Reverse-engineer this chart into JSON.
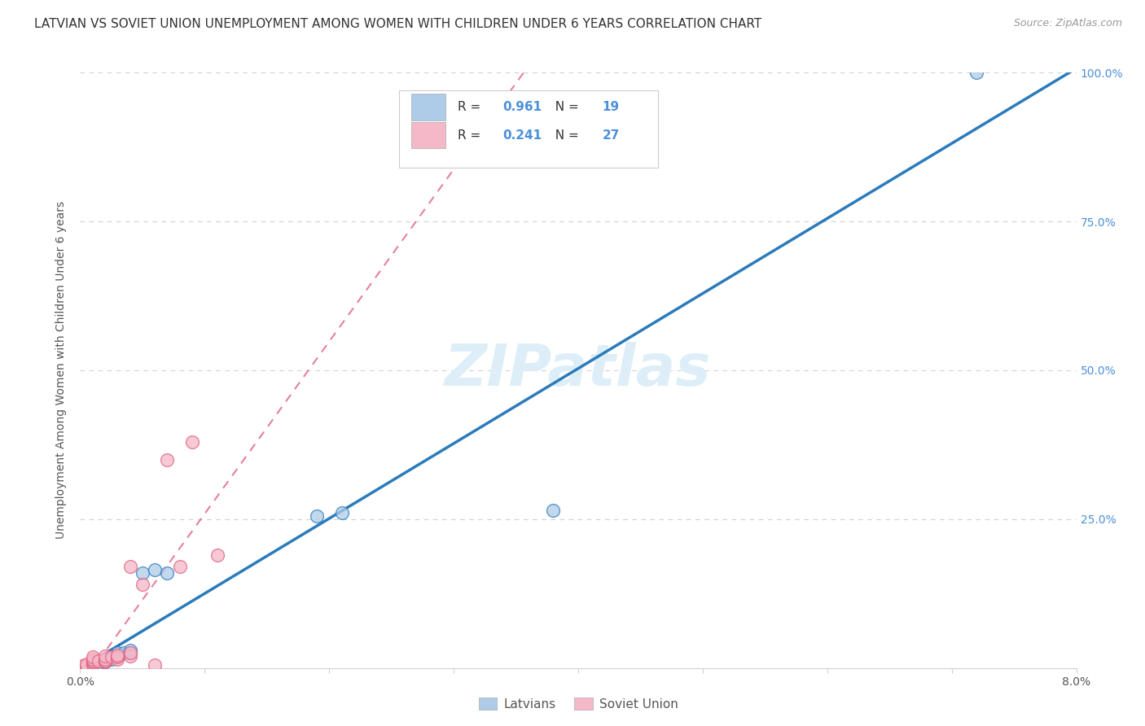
{
  "title": "LATVIAN VS SOVIET UNION UNEMPLOYMENT AMONG WOMEN WITH CHILDREN UNDER 6 YEARS CORRELATION CHART",
  "source": "Source: ZipAtlas.com",
  "ylabel": "Unemployment Among Women with Children Under 6 years",
  "xlim": [
    0.0,
    0.08
  ],
  "ylim": [
    0.0,
    1.0
  ],
  "xticks": [
    0.0,
    0.01,
    0.02,
    0.03,
    0.04,
    0.05,
    0.06,
    0.07,
    0.08
  ],
  "xticklabels": [
    "0.0%",
    "",
    "",
    "",
    "",
    "",
    "",
    "",
    "8.0%"
  ],
  "ytick_positions": [
    0.0,
    0.25,
    0.5,
    0.75,
    1.0
  ],
  "yticklabels": [
    "",
    "25.0%",
    "50.0%",
    "75.0%",
    "100.0%"
  ],
  "latvian_color": "#aecce8",
  "latvian_color_fill": "#aecce8",
  "latvian_line_color": "#2b7bba",
  "soviet_color": "#f4b8c8",
  "soviet_color_fill": "#f4b8c8",
  "soviet_line_color": "#e06080",
  "latvian_R": 0.961,
  "latvian_N": 19,
  "soviet_R": 0.241,
  "soviet_N": 27,
  "legend_label_latvian": "Latvians",
  "legend_label_soviet": "Soviet Union",
  "watermark": "ZIPatlas",
  "latvian_x": [
    0.0005,
    0.001,
    0.0012,
    0.0015,
    0.002,
    0.002,
    0.0025,
    0.003,
    0.003,
    0.0035,
    0.004,
    0.004,
    0.005,
    0.006,
    0.007,
    0.019,
    0.021,
    0.038,
    0.072
  ],
  "latvian_y": [
    0.003,
    0.005,
    0.007,
    0.008,
    0.01,
    0.015,
    0.015,
    0.02,
    0.025,
    0.025,
    0.025,
    0.03,
    0.16,
    0.165,
    0.16,
    0.255,
    0.26,
    0.265,
    1.0
  ],
  "soviet_x": [
    0.0002,
    0.0005,
    0.0005,
    0.001,
    0.001,
    0.001,
    0.001,
    0.001,
    0.001,
    0.0015,
    0.002,
    0.002,
    0.002,
    0.002,
    0.0025,
    0.003,
    0.003,
    0.003,
    0.004,
    0.004,
    0.004,
    0.005,
    0.006,
    0.007,
    0.008,
    0.009,
    0.011
  ],
  "soviet_y": [
    0.003,
    0.004,
    0.006,
    0.005,
    0.008,
    0.01,
    0.012,
    0.015,
    0.018,
    0.012,
    0.01,
    0.012,
    0.015,
    0.02,
    0.018,
    0.015,
    0.018,
    0.022,
    0.02,
    0.025,
    0.17,
    0.14,
    0.005,
    0.35,
    0.17,
    0.38,
    0.19
  ],
  "background_color": "#ffffff",
  "grid_color": "#d0d0d0",
  "title_fontsize": 11,
  "axis_label_fontsize": 10,
  "tick_fontsize": 10,
  "legend_fontsize": 11,
  "watermark_fontsize": 52,
  "watermark_color": "#ddeef8",
  "right_ytick_color": "#4a90d9",
  "scatter_size": 130
}
